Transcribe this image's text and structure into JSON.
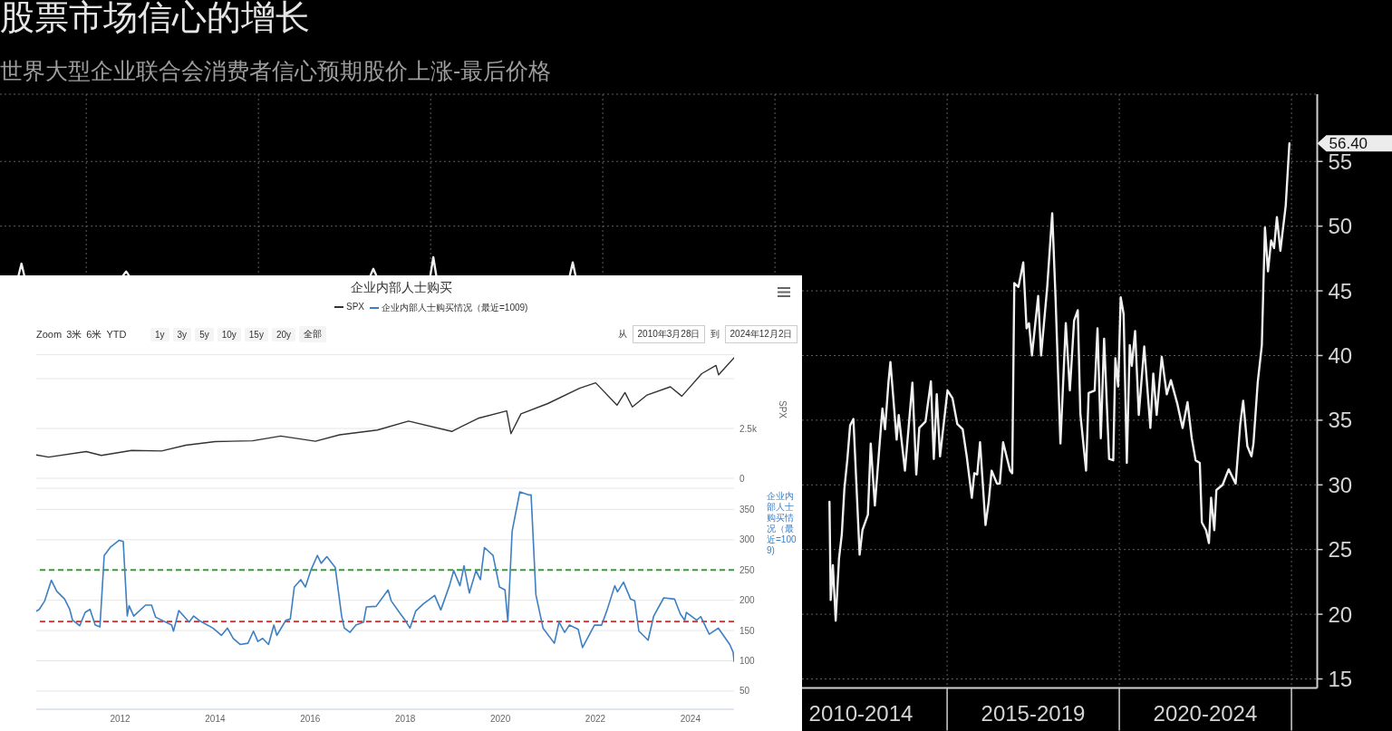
{
  "chart_data": [
    {
      "type": "line",
      "title": "股票市场信心的增长",
      "subtitle": "世界大型企业联合会消费者信心预期股价上涨-最后价格",
      "x": [
        "1988-01-14",
        "1988-02-14",
        "1988-03-14",
        "1989-06-01",
        "1991-01-28",
        "1991-02-28",
        "1991-03-28",
        "1995-01-01",
        "1998-04-04",
        "1998-05-04",
        "1998-06-04",
        "1999-03-01",
        "1999-12-30",
        "2000-01-30",
        "2000-03-01",
        "2002-01-01",
        "2004-01-17",
        "2004-02-17",
        "2004-03-17",
        "2008-01-01",
        "2011-08-02",
        "2011-08-15",
        "2011-09-07",
        "2011-10-07",
        "2011-11-11",
        "2011-12-11",
        "2012-01-07",
        "2012-02-08",
        "2012-03-08",
        "2012-04-12",
        "2012-06-17",
        "2012-07-17",
        "2012-09-13",
        "2012-10-13",
        "2012-11-26",
        "2013-01-01",
        "2013-02-14",
        "2013-03-14",
        "2013-04-19",
        "2013-05-10",
        "2013-07-15",
        "2013-08-06",
        "2013-10-11",
        "2013-12-29",
        "2014-02-08",
        "2014-03-12",
        "2014-05-17",
        "2014-07-13",
        "2014-08-13",
        "2014-09-13",
        "2014-10-18",
        "2015-01-05",
        "2015-02-27",
        "2015-04-19",
        "2015-06-15",
        "2015-07-28",
        "2015-09-20",
        "2015-10-16",
        "2015-11-16",
        "2015-12-16",
        "2016-02-12",
        "2016-03-17",
        "2016-04-17",
        "2016-06-13",
        "2016-07-13",
        "2016-08-17",
        "2016-10-30",
        "2016-11-22",
        "2016-12-14",
        "2017-01-27",
        "2017-03-19",
        "2017-04-23",
        "2017-05-19",
        "2017-06-19",
        "2017-08-24",
        "2017-09-24",
        "2017-11-28",
        "2018-01-20",
        "2018-02-25",
        "2018-04-17",
        "2018-06-13",
        "2018-07-26",
        "2018-09-09",
        "2018-10-18",
        "2018-11-14",
        "2019-01-14",
        "2019-02-10",
        "2019-04-15",
        "2019-05-15",
        "2019-06-19",
        "2019-07-24",
        "2019-09-15",
        "2019-10-29",
        "2019-11-20",
        "2019-12-20",
        "2020-01-16",
        "2020-02-16",
        "2020-03-21",
        "2020-04-21",
        "2020-05-13",
        "2020-06-17",
        "2020-07-26",
        "2020-09-22",
        "2020-11-26",
        "2020-12-27",
        "2021-02-01",
        "2021-03-27",
        "2021-05-19",
        "2021-07-02",
        "2021-09-07",
        "2021-11-03",
        "2021-12-25",
        "2022-02-08",
        "2022-03-21",
        "2022-05-04",
        "2022-05-26",
        "2022-07-09",
        "2022-08-09",
        "2022-09-01",
        "2022-10-05",
        "2022-10-27",
        "2023-01-01",
        "2023-03-06",
        "2023-05-19",
        "2023-07-07",
        "2023-08-07",
        "2023-09-20",
        "2023-11-03",
        "2023-11-24",
        "2024-01-08",
        "2024-02-21",
        "2024-03-25",
        "2024-04-26",
        "2024-05-30",
        "2024-06-30",
        "2024-07-30",
        "2024-09-05",
        "2024-11-01",
        "2024-12-10"
      ],
      "series": [
        {
          "color": "#f0f0f0",
          "values": [
            46.2,
            47.1,
            46.2,
            null,
            46.2,
            46.5,
            46.2,
            null,
            46.2,
            46.7,
            46.2,
            null,
            46.2,
            47.6,
            46.2,
            null,
            46.2,
            47.2,
            46.2,
            null,
            28.7,
            21.1,
            23.8,
            19.5,
            24.3,
            26.2,
            29.7,
            32.0,
            34.6,
            35.1,
            24.6,
            26.5,
            27.7,
            33.2,
            28.4,
            31.8,
            35.9,
            34.3,
            37.9,
            39.5,
            33.5,
            35.4,
            31.1,
            37.9,
            30.8,
            34.4,
            34.9,
            38.0,
            32.0,
            37.0,
            32.2,
            37.3,
            36.7,
            34.7,
            34.3,
            32.2,
            29.0,
            30.9,
            30.8,
            33.3,
            26.9,
            28.7,
            31.1,
            30.1,
            30.1,
            33.3,
            31.1,
            30.9,
            45.6,
            45.3,
            47.2,
            42.1,
            42.5,
            40.0,
            44.6,
            40.0,
            45.3,
            51.0,
            44.3,
            33.2,
            42.5,
            37.3,
            42.7,
            43.5,
            35.5,
            31.1,
            37.1,
            37.3,
            42.1,
            33.6,
            41.3,
            32.0,
            31.9,
            39.8,
            37.6,
            44.5,
            43.2,
            31.7,
            40.8,
            39.2,
            41.9,
            35.4,
            40.7,
            34.4,
            38.6,
            35.4,
            39.9,
            37.0,
            38.1,
            36.3,
            34.4,
            36.4,
            33.6,
            31.9,
            31.7,
            27.1,
            26.5,
            25.5,
            29.0,
            26.5,
            29.6,
            30.0,
            31.2,
            30.1,
            34.7,
            36.5,
            33.0,
            32.2,
            33.2,
            37.9,
            40.8,
            49.9,
            46.5,
            48.9,
            48.3,
            50.7,
            48.1,
            51.6,
            56.4
          ]
        }
      ],
      "xlim": [
        "1987-07-01",
        "2025-10-01"
      ],
      "xticks": [
        {
          "value": "1990",
          "label": null
        },
        {
          "value": "1995",
          "label": null
        },
        {
          "value": "2000",
          "label": null
        },
        {
          "value": "2005",
          "label": null
        },
        {
          "value": "2010",
          "label": null
        },
        {
          "value": "2012-07-01",
          "label": "2010-2014"
        },
        {
          "value": "2015",
          "label": null
        },
        {
          "value": "2017-07-01",
          "label": "2015-2019"
        },
        {
          "value": "2020",
          "label": null
        },
        {
          "value": "2022-07-01",
          "label": "2020-2024"
        },
        {
          "value": "2025",
          "label": null
        }
      ],
      "ylim": [
        14.3,
        60.2
      ],
      "yticks": [
        15,
        20,
        25,
        30,
        35,
        40,
        45,
        50,
        55
      ],
      "grid": true,
      "annotations": [
        {
          "text": "56.40",
          "x": "2024-12-10",
          "y": 56.4
        }
      ]
    },
    {
      "type": "line",
      "title": "企业内部人士购买",
      "annotations": [
        "Zoom",
        "3米",
        "6米",
        "YTD",
        "1y",
        "3y",
        "5y",
        "10y",
        "15y",
        "20y",
        "全部",
        "从",
        "2010年3月28日",
        "到",
        "2024年12月2日"
      ],
      "x": [
        "2010-03-28",
        "2010-07-01",
        "2011-04-15",
        "2011-08-10",
        "2012-03-30",
        "2012-11-15",
        "2013-05-20",
        "2014-01-01",
        "2014-10-15",
        "2015-05-20",
        "2016-02-10",
        "2016-08-15",
        "2017-06-01",
        "2018-01-26",
        "2018-12-24",
        "2019-07-15",
        "2020-02-19",
        "2020-03-23",
        "2020-06-08",
        "2021-01-01",
        "2021-09-01",
        "2022-01-03",
        "2022-06-16",
        "2022-08-16",
        "2022-10-12",
        "2023-02-02",
        "2023-07-31",
        "2023-10-27",
        "2024-03-28",
        "2024-07-16",
        "2024-08-05",
        "2024-12-02"
      ],
      "series": [
        {
          "name": "SPX",
          "color": "#333333",
          "values": [
            1170,
            1060,
            1340,
            1150,
            1400,
            1370,
            1660,
            1840,
            1880,
            2120,
            1860,
            2180,
            2420,
            2870,
            2350,
            3010,
            3380,
            2240,
            3230,
            3750,
            4520,
            4790,
            3670,
            4300,
            3580,
            4180,
            4590,
            4120,
            5250,
            5660,
            5190,
            6050
          ]
        }
      ],
      "xlim": [
        "2010-03-28",
        "2024-12-02"
      ],
      "ylim": [
        0,
        6200
      ],
      "yticks": [
        0,
        {
          "value": 2500,
          "label": "2.5k"
        },
        {
          "value": 5000,
          "label": null
        }
      ],
      "ylabel": "SPX",
      "grid": "y",
      "legend": "top",
      "tick_labels": "y"
    },
    {
      "type": "line",
      "x": [
        "2010-03-28",
        "2010-04-20",
        "2010-06-01",
        "2010-07-22",
        "2010-09-01",
        "2010-11-01",
        "2010-12-10",
        "2011-01-01",
        "2011-02-25",
        "2011-04-08",
        "2011-05-15",
        "2011-06-24",
        "2011-07-30",
        "2011-09-01",
        "2011-10-20",
        "2011-12-25",
        "2012-01-25",
        "2012-02-25",
        "2012-03-10",
        "2012-04-15",
        "2012-07-15",
        "2012-08-30",
        "2012-10-01",
        "2013-02-01",
        "2013-02-15",
        "2013-03-28",
        "2013-06-15",
        "2013-07-20",
        "2013-09-12",
        "2013-12-15",
        "2014-02-18",
        "2014-04-05",
        "2014-05-20",
        "2014-07-12",
        "2014-09-10",
        "2014-10-22",
        "2014-11-25",
        "2015-01-01",
        "2015-02-15",
        "2015-03-28",
        "2015-04-20",
        "2015-06-28",
        "2015-08-01",
        "2015-09-01",
        "2015-10-20",
        "2015-11-25",
        "2016-01-05",
        "2016-02-25",
        "2016-03-25",
        "2016-05-08",
        "2016-07-12",
        "2016-08-30",
        "2016-09-20",
        "2016-11-03",
        "2016-12-18",
        "2017-02-15",
        "2017-03-08",
        "2017-05-22",
        "2017-08-22",
        "2017-09-15",
        "2017-11-20",
        "2017-12-25",
        "2018-02-06",
        "2018-03-22",
        "2018-05-20",
        "2018-08-15",
        "2018-10-01",
        "2018-12-06",
        "2019-01-08",
        "2019-02-25",
        "2019-03-28",
        "2019-05-08",
        "2019-06-28",
        "2019-08-01",
        "2019-09-01",
        "2019-11-06",
        "2019-12-25",
        "2020-02-06",
        "2020-02-28",
        "2020-04-01",
        "2020-05-30",
        "2020-08-05",
        "2020-08-25",
        "2020-10-01",
        "2020-11-25",
        "2021-02-20",
        "2021-03-28",
        "2021-05-10",
        "2021-06-15",
        "2021-08-22",
        "2021-09-24",
        "2021-12-25",
        "2022-02-18",
        "2022-04-01",
        "2022-05-30",
        "2022-06-20",
        "2022-08-05",
        "2022-09-28",
        "2022-10-30",
        "2022-12-01",
        "2023-02-10",
        "2023-03-25",
        "2023-06-10",
        "2023-09-01",
        "2023-10-16",
        "2023-11-18",
        "2023-12-01",
        "2024-02-18",
        "2024-03-20",
        "2024-05-25",
        "2024-08-03",
        "2024-10-30",
        "2024-11-25",
        "2024-12-02"
      ],
      "series": [
        {
          "name": "企业内部人士购买情况（最近=1009)",
          "color": "#3d7fc1",
          "values": [
            182,
            185,
            199,
            233,
            215,
            202,
            185,
            167,
            158,
            180,
            185,
            159,
            156,
            274,
            288,
            299,
            297,
            174,
            191,
            174,
            192,
            192,
            172,
            159,
            149,
            183,
            164,
            174,
            165,
            154,
            142,
            154,
            137,
            127,
            129,
            149,
            132,
            137,
            127,
            159,
            142,
            167,
            169,
            222,
            234,
            222,
            249,
            274,
            261,
            272,
            254,
            174,
            154,
            147,
            159,
            164,
            189,
            190,
            217,
            199,
            179,
            169,
            154,
            182,
            194,
            208,
            184,
            224,
            249,
            224,
            257,
            212,
            249,
            234,
            287,
            274,
            222,
            217,
            165,
            314,
            379,
            374,
            374,
            209,
            154,
            129,
            164,
            147,
            159,
            152,
            122,
            159,
            159,
            184,
            224,
            214,
            230,
            202,
            199,
            149,
            134,
            174,
            204,
            202,
            177,
            167,
            180,
            167,
            173,
            144,
            154,
            127,
            114,
            99
          ]
        }
      ],
      "xlim": [
        "2010-03-28",
        "2024-12-02"
      ],
      "xticks": [
        "2012",
        "2014",
        "2016",
        "2018",
        "2020",
        "2022",
        "2024"
      ],
      "ylim": [
        20,
        385
      ],
      "yticks": [
        50,
        100,
        150,
        200,
        250,
        300,
        350
      ],
      "ylabel": "企业内部人士购买情况（最近=1009)",
      "grid": "y",
      "legend": "top",
      "ref_lines": [
        {
          "axis": "y",
          "value": 250,
          "color": "#3a9d3a",
          "line_style": "dashed"
        },
        {
          "axis": "y",
          "value": 165,
          "color": "#d62c2c",
          "line_style": "dashed"
        }
      ]
    }
  ]
}
